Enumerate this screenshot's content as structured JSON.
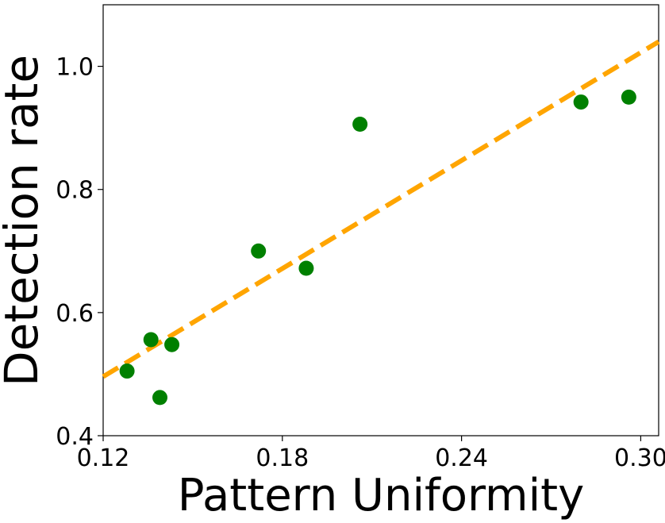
{
  "chart_data": {
    "type": "scatter",
    "xlabel": "Pattern Uniformity",
    "ylabel": "Detection rate",
    "xlim": [
      0.12,
      0.306
    ],
    "ylim": [
      0.4,
      1.1
    ],
    "x_ticks": [
      0.12,
      0.18,
      0.24,
      0.3
    ],
    "x_tick_labels": [
      "0.12",
      "0.18",
      "0.24",
      "0.30"
    ],
    "y_ticks": [
      0.4,
      0.6,
      0.8,
      1.0
    ],
    "y_tick_labels": [
      "0.4",
      "0.6",
      "0.8",
      "1.0"
    ],
    "grid": false,
    "series": [
      {
        "type": "scatter",
        "color": "#008000",
        "points": [
          {
            "x": 0.128,
            "y": 0.505
          },
          {
            "x": 0.136,
            "y": 0.556
          },
          {
            "x": 0.139,
            "y": 0.462
          },
          {
            "x": 0.143,
            "y": 0.548
          },
          {
            "x": 0.172,
            "y": 0.7
          },
          {
            "x": 0.188,
            "y": 0.672
          },
          {
            "x": 0.206,
            "y": 0.906
          },
          {
            "x": 0.28,
            "y": 0.942
          },
          {
            "x": 0.296,
            "y": 0.95
          }
        ]
      }
    ],
    "trend_line": {
      "style": "dashed",
      "color": "#FFA500",
      "from": {
        "x": 0.12,
        "y": 0.496
      },
      "to": {
        "x": 0.306,
        "y": 1.04
      }
    }
  }
}
